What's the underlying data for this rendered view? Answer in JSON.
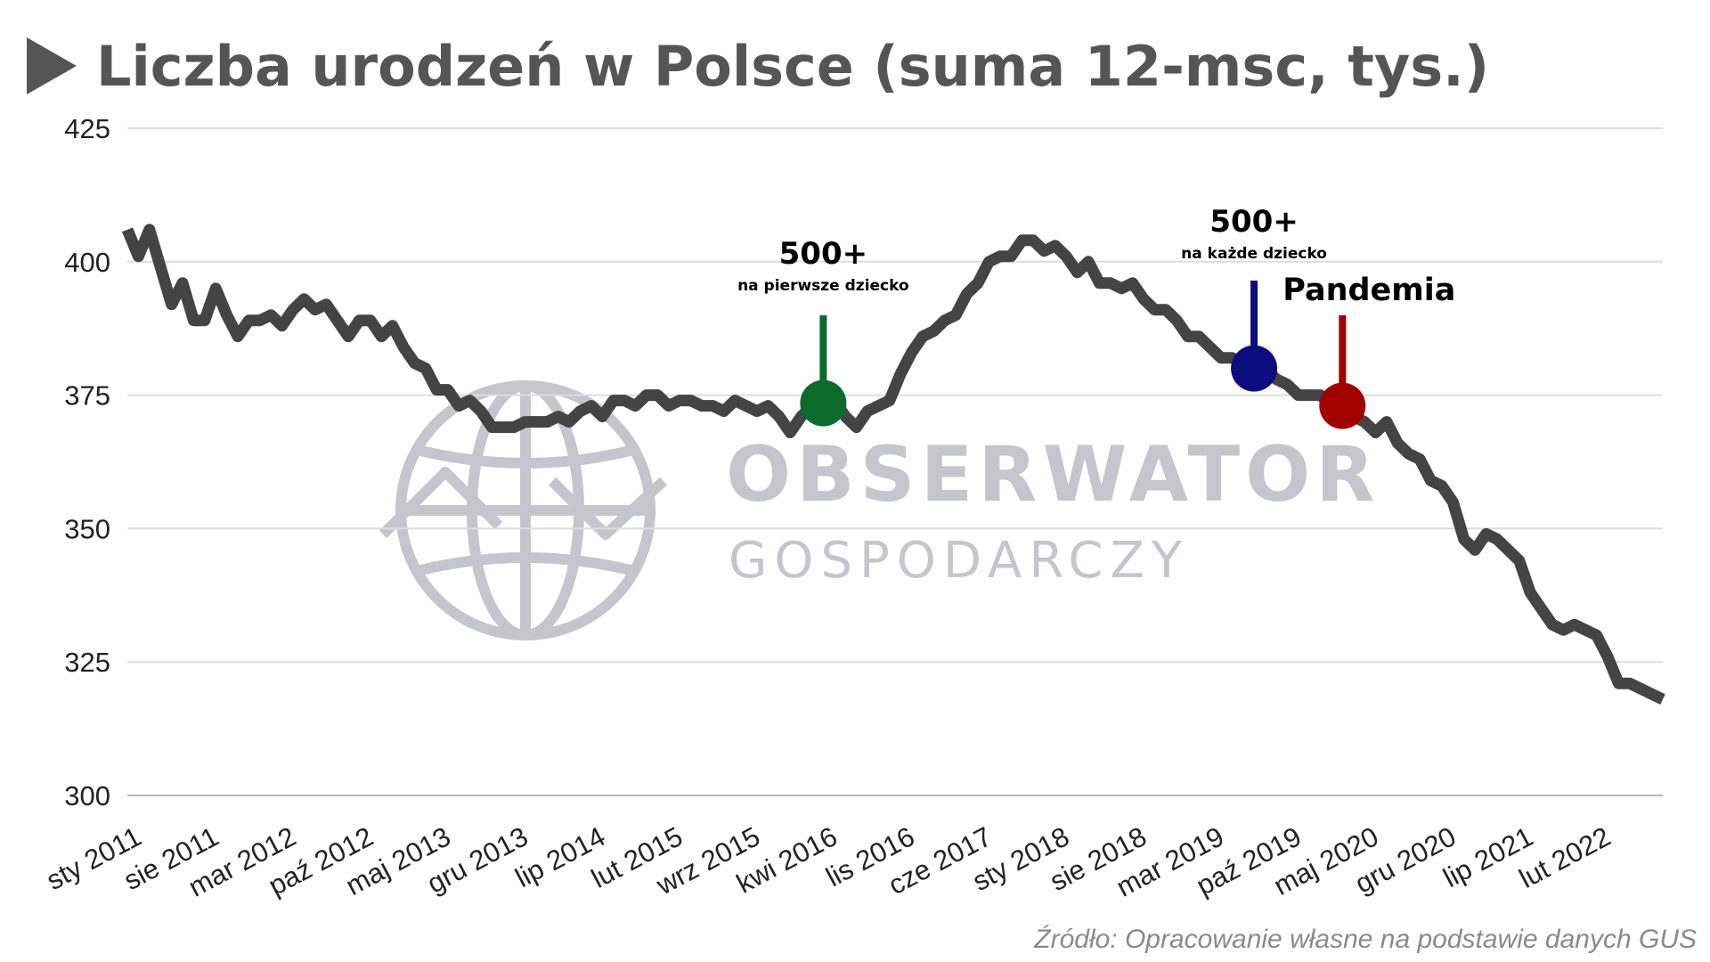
{
  "title": "Liczba urodzeń w Polsce (suma 12-msc, tys.)",
  "source": "Źródło: Opracowanie własne na podstawie danych GUS",
  "watermark": {
    "line1": "OBSERWATOR",
    "line2": "GOSPODARCZY"
  },
  "colors": {
    "line": "#444444",
    "grid": "#dddddd",
    "title": "#555555",
    "green": "#0b6b2b",
    "blue": "#0d0d80",
    "red": "#a00000",
    "watermark": "#c3c6cc"
  },
  "annotations": [
    {
      "label": "500+",
      "sublabel": "na pierwsze dziecko",
      "date": "2016-04",
      "value": 373.5,
      "color": "#0b6b2b"
    },
    {
      "label": "500+",
      "sublabel": "na każde dziecko",
      "date": "2019-07",
      "value": 380,
      "color": "#0d0d80"
    },
    {
      "label": "Pandemia",
      "sublabel": "",
      "date": "2020-03",
      "value": 373,
      "color": "#a00000"
    }
  ],
  "chart_data": {
    "type": "line",
    "title": "Liczba urodzeń w Polsce (suma 12-msc, tys.)",
    "xlabel": "",
    "ylabel": "",
    "ylim": [
      300,
      425
    ],
    "yticks": [
      300,
      325,
      350,
      375,
      400,
      425
    ],
    "grid": true,
    "xticks": [
      {
        "date": "2011-01",
        "label": "sty 2011"
      },
      {
        "date": "2011-08",
        "label": "sie 2011"
      },
      {
        "date": "2012-03",
        "label": "mar 2012"
      },
      {
        "date": "2012-10",
        "label": "paź 2012"
      },
      {
        "date": "2013-05",
        "label": "maj 2013"
      },
      {
        "date": "2013-12",
        "label": "gru 2013"
      },
      {
        "date": "2014-07",
        "label": "lip 2014"
      },
      {
        "date": "2015-02",
        "label": "lut 2015"
      },
      {
        "date": "2015-09",
        "label": "wrz 2015"
      },
      {
        "date": "2016-04",
        "label": "kwi 2016"
      },
      {
        "date": "2016-11",
        "label": "lis 2016"
      },
      {
        "date": "2017-06",
        "label": "cze 2017"
      },
      {
        "date": "2018-01",
        "label": "sty 2018"
      },
      {
        "date": "2018-08",
        "label": "sie 2018"
      },
      {
        "date": "2019-03",
        "label": "mar 2019"
      },
      {
        "date": "2019-10",
        "label": "paź 2019"
      },
      {
        "date": "2020-05",
        "label": "maj 2020"
      },
      {
        "date": "2020-12",
        "label": "gru 2020"
      },
      {
        "date": "2021-07",
        "label": "lip 2021"
      },
      {
        "date": "2022-02",
        "label": "lut 2022"
      }
    ],
    "series": [
      {
        "x": [
          "2011-01",
          "2011-02",
          "2011-03",
          "2011-04",
          "2011-05",
          "2011-06",
          "2011-07",
          "2011-08",
          "2011-09",
          "2011-10",
          "2011-11",
          "2011-12",
          "2012-01",
          "2012-02",
          "2012-03",
          "2012-04",
          "2012-05",
          "2012-06",
          "2012-07",
          "2012-08",
          "2012-09",
          "2012-10",
          "2012-11",
          "2012-12",
          "2013-01",
          "2013-02",
          "2013-03",
          "2013-04",
          "2013-05",
          "2013-06",
          "2013-07",
          "2013-08",
          "2013-09",
          "2013-10",
          "2013-11",
          "2013-12",
          "2014-01",
          "2014-02",
          "2014-03",
          "2014-04",
          "2014-05",
          "2014-06",
          "2014-07",
          "2014-08",
          "2014-09",
          "2014-10",
          "2014-11",
          "2014-12",
          "2015-01",
          "2015-02",
          "2015-03",
          "2015-04",
          "2015-05",
          "2015-06",
          "2015-07",
          "2015-08",
          "2015-09",
          "2015-10",
          "2015-11",
          "2015-12",
          "2016-01",
          "2016-02",
          "2016-03",
          "2016-04",
          "2016-05",
          "2016-06",
          "2016-07",
          "2016-08",
          "2016-09",
          "2016-10",
          "2016-11",
          "2016-12",
          "2017-01",
          "2017-02",
          "2017-03",
          "2017-04",
          "2017-05",
          "2017-06",
          "2017-07",
          "2017-08",
          "2017-09",
          "2017-10",
          "2017-11",
          "2017-12",
          "2018-01",
          "2018-02",
          "2018-03",
          "2018-04",
          "2018-05",
          "2018-06",
          "2018-07",
          "2018-08",
          "2018-09",
          "2018-10",
          "2018-11",
          "2018-12",
          "2019-01",
          "2019-02",
          "2019-03",
          "2019-04",
          "2019-05",
          "2019-06",
          "2019-07",
          "2019-08",
          "2019-09",
          "2019-10",
          "2019-11",
          "2019-12",
          "2020-01",
          "2020-02",
          "2020-03",
          "2020-04",
          "2020-05",
          "2020-06",
          "2020-07",
          "2020-08",
          "2020-09",
          "2020-10",
          "2020-11",
          "2020-12",
          "2021-01",
          "2021-02",
          "2021-03",
          "2021-04",
          "2021-05",
          "2021-06",
          "2021-07",
          "2021-08",
          "2021-09",
          "2021-10",
          "2021-11",
          "2021-12",
          "2022-01",
          "2022-02",
          "2022-03",
          "2022-04",
          "2022-05",
          "2022-06",
          "2022-07",
          "2022-08"
        ],
        "y": [
          406,
          401,
          406,
          399,
          392,
          396,
          389,
          389,
          395,
          390,
          386,
          389,
          389,
          390,
          388,
          391,
          393,
          391,
          392,
          389,
          386,
          389,
          389,
          386,
          388,
          384,
          381,
          380,
          376,
          376,
          373,
          374,
          372,
          369,
          369,
          369,
          370,
          370,
          370,
          371,
          370,
          372,
          373,
          371,
          374,
          374,
          373,
          375,
          375,
          373,
          374,
          374,
          373,
          373,
          372,
          374,
          373,
          372,
          373,
          371,
          368,
          371,
          373,
          374,
          374,
          371,
          369,
          372,
          373,
          374,
          379,
          383,
          386,
          387,
          389,
          390,
          394,
          396,
          400,
          401,
          401,
          404,
          404,
          402,
          403,
          401,
          398,
          400,
          396,
          396,
          395,
          396,
          393,
          391,
          391,
          389,
          386,
          386,
          384,
          382,
          382,
          381,
          380,
          380,
          378,
          377,
          375,
          375,
          375,
          373,
          372,
          371,
          370,
          368,
          370,
          366,
          364,
          363,
          359,
          358,
          355,
          348,
          346,
          349,
          348,
          346,
          344,
          338,
          335,
          332,
          331,
          332,
          331,
          330,
          326,
          321,
          321,
          320,
          319,
          318
        ]
      }
    ]
  }
}
